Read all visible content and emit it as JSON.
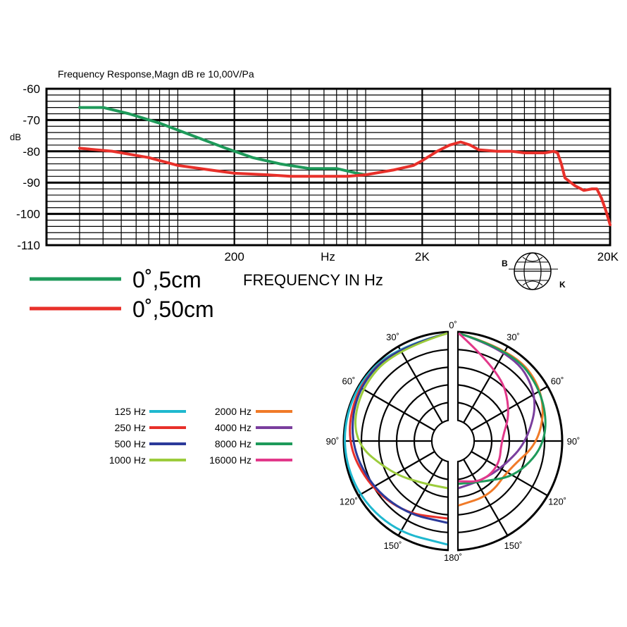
{
  "chart_data": [
    {
      "type": "line",
      "title": "Frequency Response,Magn dB re 10,00V/Pa",
      "xlabel": "FREQUENCY IN Hz",
      "ylabel": "dB",
      "x_scale": "log",
      "x_range": [
        20,
        20000
      ],
      "ylim": [
        -110,
        -60
      ],
      "grid": true,
      "y_ticks": [
        "-60",
        "-70",
        "-80",
        "-90",
        "-100",
        "-110"
      ],
      "x_ticks": [
        {
          "label": "200",
          "value": 200
        },
        {
          "label": "Hz",
          "value": 630
        },
        {
          "label": "2K",
          "value": 2000
        },
        {
          "label": "20K",
          "value": 20000
        }
      ],
      "series": [
        {
          "name": "0˚,5cm",
          "color": "#1e9a5a",
          "points": [
            [
              30,
              -66
            ],
            [
              40,
              -66
            ],
            [
              55,
              -68
            ],
            [
              80,
              -71
            ],
            [
              120,
              -75
            ],
            [
              180,
              -79
            ],
            [
              250,
              -82
            ],
            [
              350,
              -84
            ],
            [
              500,
              -85.5
            ],
            [
              700,
              -85.5
            ],
            [
              900,
              -87
            ],
            [
              1000,
              -87.5
            ]
          ]
        },
        {
          "name": "0˚,50cm",
          "color": "#e8302a",
          "points": [
            [
              30,
              -79
            ],
            [
              45,
              -80
            ],
            [
              70,
              -82
            ],
            [
              100,
              -84.5
            ],
            [
              150,
              -86
            ],
            [
              200,
              -87
            ],
            [
              300,
              -87.5
            ],
            [
              400,
              -88
            ],
            [
              600,
              -88
            ],
            [
              800,
              -88
            ],
            [
              1000,
              -87.5
            ],
            [
              1400,
              -86
            ],
            [
              1800,
              -84.5
            ],
            [
              2000,
              -83
            ],
            [
              2400,
              -80
            ],
            [
              2800,
              -78
            ],
            [
              3200,
              -77
            ],
            [
              3600,
              -78
            ],
            [
              4000,
              -79.5
            ],
            [
              5000,
              -80
            ],
            [
              6000,
              -80
            ],
            [
              7000,
              -80.5
            ],
            [
              8000,
              -80.5
            ],
            [
              9000,
              -80.5
            ],
            [
              10000,
              -80
            ],
            [
              10500,
              -80.5
            ],
            [
              11000,
              -84
            ],
            [
              11500,
              -88.5
            ],
            [
              13000,
              -91
            ],
            [
              14500,
              -92.5
            ],
            [
              16000,
              -92
            ],
            [
              17000,
              -92
            ],
            [
              18000,
              -95
            ],
            [
              19000,
              -99
            ],
            [
              20000,
              -103.5
            ]
          ]
        }
      ]
    },
    {
      "type": "polar",
      "angle_labels": [
        "0˚",
        "30˚",
        "60˚",
        "90˚",
        "120˚",
        "150˚",
        "180˚",
        "30˚",
        "60˚",
        "90˚",
        "120˚",
        "150˚"
      ],
      "series": [
        {
          "name": "125 Hz",
          "color": "#1fb8cf",
          "side": "left",
          "radii": [
            1,
            1,
            0.99,
            0.98,
            0.97,
            0.96,
            0.95
          ]
        },
        {
          "name": "250 Hz",
          "color": "#e8302a",
          "side": "left",
          "radii": [
            1,
            0.99,
            0.97,
            0.92,
            0.8,
            0.72,
            0.65
          ]
        },
        {
          "name": "500 Hz",
          "color": "#2b3a9a",
          "side": "left",
          "radii": [
            1,
            0.99,
            0.96,
            0.88,
            0.78,
            0.72,
            0.7
          ]
        },
        {
          "name": "1000 Hz",
          "color": "#9ccc3c",
          "side": "left",
          "radii": [
            1,
            0.97,
            0.93,
            0.85,
            0.5,
            0.32,
            0.3
          ]
        },
        {
          "name": "2000 Hz",
          "color": "#f07a28",
          "side": "right",
          "radii": [
            1,
            0.98,
            0.9,
            0.7,
            0.42,
            0.48,
            0.5
          ]
        },
        {
          "name": "4000 Hz",
          "color": "#7a3e9d",
          "side": "right",
          "radii": [
            1,
            0.96,
            0.82,
            0.55,
            0.35,
            0.28,
            0.3
          ]
        },
        {
          "name": "8000 Hz",
          "color": "#1e9a5a",
          "side": "right",
          "radii": [
            1,
            0.97,
            0.88,
            0.78,
            0.55,
            0.3,
            0.25
          ]
        },
        {
          "name": "16000 Hz",
          "color": "#e2388a",
          "side": "right",
          "radii": [
            1,
            0.7,
            0.45,
            0.25,
            0.3,
            0.3,
            0.22
          ]
        }
      ]
    }
  ],
  "legend": {
    "green_label": "0˚,5cm",
    "red_label": "0˚,50cm"
  },
  "logo": {
    "letter_left": "B",
    "letter_right": "K"
  }
}
